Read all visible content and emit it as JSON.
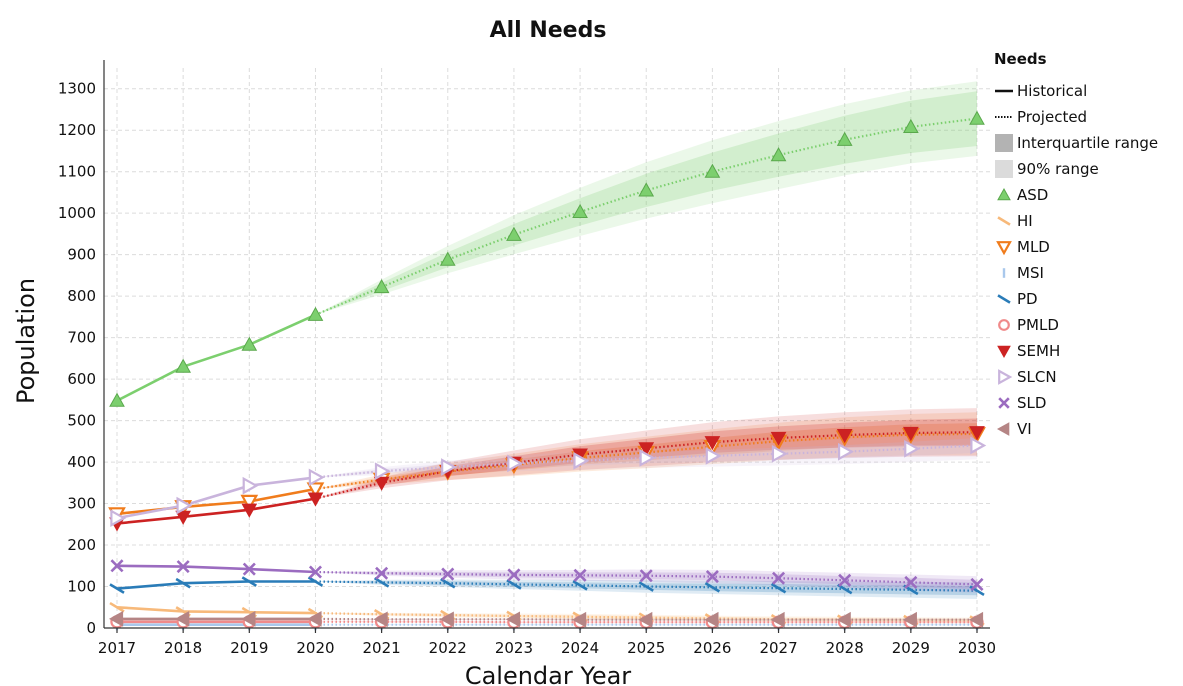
{
  "chart_data": {
    "type": "line",
    "title": "All Needs",
    "xlabel": "Calendar Year",
    "ylabel": "Population",
    "xlim": [
      2017,
      2030
    ],
    "ylim": [
      0,
      1350
    ],
    "x_ticks": [
      "2017",
      "2018",
      "2019",
      "2020",
      "2021",
      "2022",
      "2023",
      "2024",
      "2025",
      "2026",
      "2027",
      "2028",
      "2029",
      "2030"
    ],
    "y_ticks": [
      "0",
      "100",
      "200",
      "300",
      "400",
      "500",
      "600",
      "700",
      "800",
      "900",
      "1000",
      "1100",
      "1200",
      "1300"
    ],
    "grid": true,
    "legend_title": "Needs",
    "legend_placement": "right",
    "legend_styles": [
      {
        "label": "Historical",
        "kind": "solid"
      },
      {
        "label": "Projected",
        "kind": "dotted"
      },
      {
        "label": "Interquartile range",
        "kind": "iqr"
      },
      {
        "label": "90% range",
        "kind": "range90"
      }
    ],
    "historical_years": [
      2017,
      2018,
      2019,
      2020
    ],
    "projected_years": [
      2020,
      2021,
      2022,
      2023,
      2024,
      2025,
      2026,
      2027,
      2028,
      2029,
      2030
    ],
    "series": [
      {
        "name": "ASD",
        "color": "#7ccf6e",
        "marker": "triangle-up",
        "historical": [
          548,
          630,
          683,
          755
        ],
        "projected": [
          755,
          822,
          888,
          948,
          1003,
          1055,
          1100,
          1140,
          1177,
          1208,
          1228
        ],
        "iqr_halfwidth": [
          0,
          10,
          18,
          26,
          33,
          40,
          46,
          52,
          58,
          63,
          66
        ],
        "range90_halfwidth": [
          0,
          18,
          33,
          47,
          58,
          68,
          76,
          82,
          86,
          88,
          90
        ]
      },
      {
        "name": "HI",
        "color": "#f7b97a",
        "marker": "dash-slant",
        "historical": [
          50,
          40,
          38,
          36
        ],
        "projected": [
          36,
          33,
          31,
          29,
          27,
          25,
          23,
          21,
          20,
          19,
          18
        ],
        "iqr_halfwidth": [
          0,
          2,
          3,
          3,
          4,
          4,
          4,
          4,
          4,
          4,
          4
        ],
        "range90_halfwidth": [
          0,
          4,
          5,
          6,
          7,
          7,
          7,
          7,
          7,
          7,
          7
        ]
      },
      {
        "name": "MLD",
        "color": "#f07c1c",
        "marker": "triangle-down-open",
        "historical": [
          275,
          292,
          305,
          335
        ],
        "projected": [
          335,
          358,
          377,
          393,
          410,
          423,
          437,
          450,
          460,
          466,
          468
        ],
        "iqr_halfwidth": [
          0,
          6,
          10,
          13,
          16,
          19,
          21,
          23,
          24,
          25,
          26
        ],
        "range90_halfwidth": [
          0,
          12,
          20,
          27,
          33,
          38,
          42,
          45,
          48,
          50,
          52
        ]
      },
      {
        "name": "MSI",
        "color": "#a9c8ec",
        "marker": "bar",
        "historical": [
          8,
          8,
          8,
          8
        ],
        "projected": [
          8,
          8,
          8,
          8,
          8,
          8,
          8,
          8,
          8,
          8,
          8
        ],
        "iqr_halfwidth": [
          0,
          1,
          1,
          1,
          1,
          1,
          1,
          1,
          1,
          1,
          1
        ],
        "range90_halfwidth": [
          0,
          1,
          2,
          2,
          2,
          2,
          2,
          2,
          2,
          2,
          2
        ]
      },
      {
        "name": "PD",
        "color": "#2a7cb8",
        "marker": "dash-slant",
        "historical": [
          95,
          108,
          112,
          112
        ],
        "projected": [
          112,
          110,
          108,
          105,
          103,
          100,
          98,
          96,
          94,
          92,
          90
        ],
        "iqr_halfwidth": [
          0,
          3,
          5,
          6,
          7,
          8,
          9,
          10,
          10,
          11,
          11
        ],
        "range90_halfwidth": [
          0,
          6,
          9,
          11,
          13,
          15,
          16,
          17,
          18,
          19,
          20
        ]
      },
      {
        "name": "PMLD",
        "color": "#f08a8a",
        "marker": "circle-open",
        "historical": [
          15,
          15,
          15,
          15
        ],
        "projected": [
          15,
          15,
          15,
          14,
          14,
          14,
          14,
          14,
          14,
          14,
          14
        ],
        "iqr_halfwidth": [
          0,
          1,
          1,
          1,
          1,
          1,
          1,
          1,
          1,
          1,
          1
        ],
        "range90_halfwidth": [
          0,
          2,
          2,
          2,
          3,
          3,
          3,
          3,
          3,
          3,
          3
        ]
      },
      {
        "name": "SEMH",
        "color": "#cc2222",
        "marker": "triangle-down",
        "historical": [
          252,
          268,
          285,
          312
        ],
        "projected": [
          312,
          350,
          378,
          398,
          418,
          433,
          448,
          458,
          465,
          470,
          472
        ],
        "iqr_halfwidth": [
          0,
          7,
          12,
          16,
          20,
          23,
          26,
          28,
          30,
          32,
          33
        ],
        "range90_halfwidth": [
          0,
          13,
          22,
          30,
          37,
          43,
          48,
          52,
          55,
          57,
          58
        ]
      },
      {
        "name": "SLCN",
        "color": "#c9b4dc",
        "marker": "triangle-right",
        "historical": [
          265,
          295,
          343,
          363
        ],
        "projected": [
          363,
          378,
          388,
          397,
          403,
          410,
          415,
          420,
          425,
          432,
          440
        ],
        "iqr_halfwidth": [
          0,
          5,
          8,
          10,
          12,
          13,
          14,
          15,
          16,
          17,
          18
        ],
        "range90_halfwidth": [
          0,
          10,
          15,
          19,
          22,
          24,
          26,
          28,
          30,
          32,
          33
        ]
      },
      {
        "name": "SLD",
        "color": "#9b6cc0",
        "marker": "x",
        "historical": [
          150,
          148,
          142,
          135
        ],
        "projected": [
          135,
          132,
          130,
          128,
          127,
          126,
          124,
          120,
          115,
          110,
          105
        ],
        "iqr_halfwidth": [
          0,
          3,
          5,
          6,
          7,
          8,
          9,
          10,
          10,
          11,
          11
        ],
        "range90_halfwidth": [
          0,
          6,
          9,
          11,
          13,
          15,
          16,
          17,
          18,
          19,
          20
        ]
      },
      {
        "name": "VI",
        "color": "#b58585",
        "marker": "triangle-left",
        "historical": [
          22,
          22,
          22,
          22
        ],
        "projected": [
          22,
          21,
          21,
          21,
          20,
          20,
          20,
          20,
          20,
          20,
          20
        ],
        "iqr_halfwidth": [
          0,
          1,
          1,
          1,
          1,
          1,
          1,
          1,
          1,
          1,
          1
        ],
        "range90_halfwidth": [
          0,
          2,
          2,
          2,
          3,
          3,
          3,
          3,
          3,
          3,
          3
        ]
      }
    ]
  }
}
